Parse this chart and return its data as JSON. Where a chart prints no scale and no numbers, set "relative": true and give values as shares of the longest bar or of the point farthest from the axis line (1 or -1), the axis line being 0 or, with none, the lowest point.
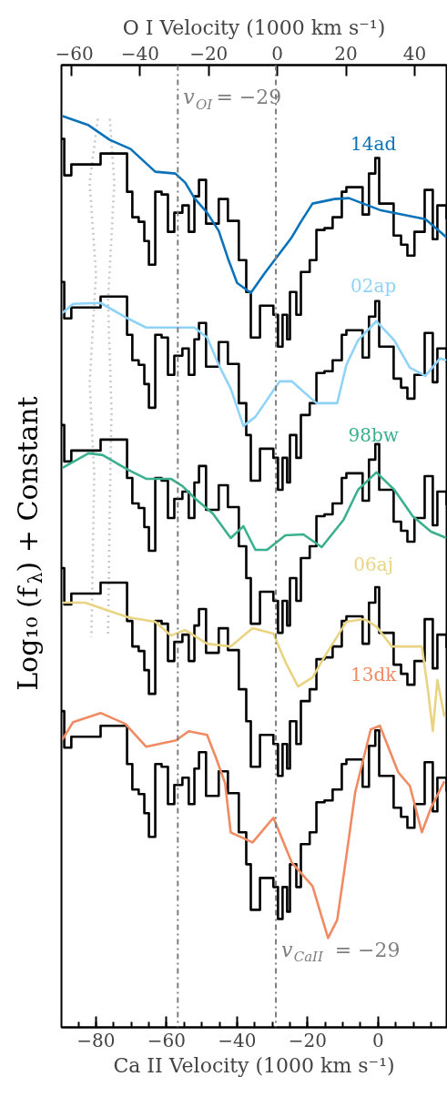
{
  "chart_data": {
    "type": "step",
    "relative": true,
    "tick_labels": "x",
    "xlabel": "Ca II Velocity (1000 km s⁻¹)",
    "x2label": "O I Velocity (1000 km s⁻¹)",
    "ylabel": "Log₁₀ (f$_{λ}$) + Constant",
    "xlim": [
      -89.8,
      19.4
    ],
    "xticks": [
      -80,
      -60,
      -40,
      -20,
      0
    ],
    "x2lim": [
      -62.9,
      49.3
    ],
    "x2ticks": [
      -60,
      -40,
      -20,
      0,
      20,
      40
    ],
    "x": [
      -89.8,
      -89.0,
      -87.0,
      -78.7,
      -71.2,
      -69.7,
      -67.9,
      -66.3,
      -65.0,
      -63.2,
      -61.4,
      -59.6,
      -57.8,
      -55.5,
      -53.7,
      -52.1,
      -50.8,
      -48.8,
      -45.2,
      -42.6,
      -39.5,
      -37.4,
      -36.1,
      -33.5,
      -29.7,
      -28.4,
      -27.1,
      -25.8,
      -25.0,
      -23.2,
      -21.9,
      -19.4,
      -17.5,
      -15.2,
      -12.9,
      -10.3,
      -9.0,
      -4.4,
      -2.6,
      -0.8,
      0.3,
      4.4,
      6.5,
      8.3,
      10.3,
      13.2,
      15.5,
      16.8,
      19.4
    ],
    "series": [
      {
        "type": "line",
        "color": "#c8c8c8",
        "line_style": "dotted",
        "x": [
          -79.5,
          -81.8,
          -80.0,
          -81.8,
          -80.5,
          -81.3
        ],
        "values": [
          0.997,
          0.927,
          0.827,
          0.707,
          0.608,
          0.428
        ]
      },
      {
        "type": "line",
        "color": "#c8c8c8",
        "line_style": "dotted",
        "x": [
          -76.1,
          -74.8,
          -76.6,
          -75.6,
          -76.1,
          -76.6
        ],
        "values": [
          0.997,
          0.927,
          0.797,
          0.677,
          0.568,
          0.428
        ]
      },
      {
        "color": "#000000",
        "values": [
          0.975,
          0.935,
          0.947,
          0.959,
          0.917,
          0.889,
          0.884,
          0.863,
          0.837,
          0.917,
          0.914,
          0.873,
          0.894,
          0.902,
          0.873,
          0.912,
          0.93,
          0.882,
          0.909,
          0.885,
          0.842,
          0.807,
          0.757,
          0.792,
          0.782,
          0.747,
          0.782,
          0.755,
          0.807,
          0.782,
          0.829,
          0.842,
          0.875,
          0.877,
          0.889,
          0.917,
          0.922,
          0.892,
          0.937,
          0.954,
          0.904,
          0.869,
          0.859,
          0.847,
          0.873,
          0.919,
          0.865,
          0.902,
          0.887
        ]
      },
      {
        "color": "#000000",
        "values": [
          0.818,
          0.778,
          0.79,
          0.802,
          0.76,
          0.732,
          0.727,
          0.706,
          0.68,
          0.76,
          0.757,
          0.716,
          0.737,
          0.745,
          0.716,
          0.755,
          0.773,
          0.725,
          0.752,
          0.728,
          0.685,
          0.65,
          0.6,
          0.635,
          0.625,
          0.59,
          0.625,
          0.598,
          0.65,
          0.625,
          0.672,
          0.685,
          0.718,
          0.72,
          0.732,
          0.76,
          0.765,
          0.735,
          0.78,
          0.797,
          0.747,
          0.712,
          0.702,
          0.69,
          0.716,
          0.762,
          0.708,
          0.745,
          0.73
        ]
      },
      {
        "color": "#000000",
        "values": [
          0.661,
          0.621,
          0.633,
          0.645,
          0.603,
          0.575,
          0.57,
          0.549,
          0.523,
          0.603,
          0.6,
          0.559,
          0.58,
          0.588,
          0.559,
          0.598,
          0.616,
          0.568,
          0.595,
          0.571,
          0.528,
          0.493,
          0.443,
          0.478,
          0.468,
          0.433,
          0.468,
          0.441,
          0.493,
          0.468,
          0.515,
          0.528,
          0.561,
          0.563,
          0.575,
          0.603,
          0.608,
          0.578,
          0.623,
          0.64,
          0.59,
          0.555,
          0.545,
          0.533,
          0.559,
          0.605,
          0.551,
          0.588,
          0.573
        ]
      },
      {
        "color": "#000000",
        "values": [
          0.504,
          0.464,
          0.476,
          0.488,
          0.446,
          0.418,
          0.413,
          0.392,
          0.366,
          0.446,
          0.443,
          0.402,
          0.423,
          0.431,
          0.402,
          0.441,
          0.459,
          0.411,
          0.438,
          0.414,
          0.371,
          0.336,
          0.286,
          0.321,
          0.311,
          0.276,
          0.311,
          0.284,
          0.336,
          0.311,
          0.358,
          0.371,
          0.404,
          0.406,
          0.418,
          0.446,
          0.451,
          0.421,
          0.466,
          0.483,
          0.433,
          0.398,
          0.388,
          0.376,
          0.402,
          0.448,
          0.394,
          0.431,
          0.416
        ]
      },
      {
        "color": "#000000",
        "values": [
          0.347,
          0.307,
          0.319,
          0.331,
          0.289,
          0.261,
          0.256,
          0.235,
          0.209,
          0.289,
          0.286,
          0.245,
          0.266,
          0.274,
          0.245,
          0.284,
          0.302,
          0.254,
          0.281,
          0.257,
          0.214,
          0.179,
          0.129,
          0.164,
          0.154,
          0.119,
          0.154,
          0.127,
          0.179,
          0.154,
          0.201,
          0.214,
          0.247,
          0.249,
          0.261,
          0.289,
          0.294,
          0.264,
          0.309,
          0.326,
          0.276,
          0.241,
          0.231,
          0.219,
          0.245,
          0.291,
          0.237,
          0.274,
          0.259
        ]
      },
      {
        "name": "14ad",
        "type": "line",
        "color": "#0a72b8",
        "x": [
          -89.5,
          -82.1,
          -76.1,
          -70.2,
          -63.2,
          -57.5,
          -54.7,
          -52.1,
          -48.5,
          -45.2,
          -42.6,
          -40.0,
          -36.1,
          -32.3,
          -28.4,
          -24.5,
          -21.9,
          -18.6,
          -12.4,
          -8.3,
          0.5,
          13.4,
          19.4
        ],
        "values": [
          1.0,
          0.99,
          0.974,
          0.964,
          0.939,
          0.937,
          0.927,
          0.91,
          0.894,
          0.874,
          0.844,
          0.817,
          0.806,
          0.827,
          0.847,
          0.867,
          0.884,
          0.904,
          0.909,
          0.91,
          0.897,
          0.887,
          0.867
        ]
      },
      {
        "name": "02ap",
        "type": "line",
        "color": "#8fd3f7",
        "x": [
          -89.5,
          -86.5,
          -78.7,
          -71.0,
          -65.8,
          -57.3,
          -52.1,
          -48.5,
          -45.2,
          -41.8,
          -38.2,
          -34.8,
          -27.9,
          -24.5,
          -17.5,
          -11.6,
          -9.0,
          -5.7,
          -0.5,
          4.6,
          9.0,
          13.4,
          17.5,
          19.4
        ],
        "values": [
          0.784,
          0.794,
          0.795,
          0.778,
          0.768,
          0.768,
          0.768,
          0.757,
          0.727,
          0.701,
          0.66,
          0.67,
          0.709,
          0.709,
          0.685,
          0.685,
          0.727,
          0.754,
          0.775,
          0.754,
          0.724,
          0.715,
          0.734,
          0.732
        ]
      },
      {
        "name": "98bw",
        "type": "line",
        "color": "#3bb08f",
        "x": [
          -89.5,
          -82.1,
          -78.1,
          -71.0,
          -65.8,
          -58.8,
          -55.5,
          -52.1,
          -46.9,
          -41.8,
          -38.2,
          -34.8,
          -31.5,
          -26.3,
          -21.2,
          -16.0,
          -9.8,
          -5.7,
          -0.5,
          4.6,
          9.8,
          15.0,
          19.4
        ],
        "values": [
          0.614,
          0.63,
          0.628,
          0.612,
          0.602,
          0.602,
          0.594,
          0.581,
          0.564,
          0.537,
          0.55,
          0.524,
          0.524,
          0.54,
          0.541,
          0.527,
          0.557,
          0.59,
          0.609,
          0.59,
          0.561,
          0.544,
          0.537
        ]
      },
      {
        "name": "06aj",
        "type": "line",
        "color": "#e8d482",
        "x": [
          -89.5,
          -83.1,
          -71.0,
          -63.2,
          -58.8,
          -54.7,
          -48.5,
          -41.8,
          -35.6,
          -29.7,
          -26.3,
          -22.7,
          -18.6,
          -15.0,
          -9.0,
          -3.9,
          -0.5,
          3.9,
          12.4,
          14.2,
          15.5,
          16.8,
          18.8
        ],
        "values": [
          0.466,
          0.466,
          0.45,
          0.445,
          0.43,
          0.436,
          0.421,
          0.418,
          0.438,
          0.432,
          0.401,
          0.374,
          0.384,
          0.408,
          0.445,
          0.448,
          0.44,
          0.418,
          0.418,
          0.368,
          0.325,
          0.381,
          0.341
        ]
      },
      {
        "name": "13dk",
        "type": "line",
        "color": "#f08a62",
        "x": [
          -89.5,
          -86.5,
          -78.7,
          -71.7,
          -65.8,
          -57.3,
          -53.7,
          -48.5,
          -45.9,
          -43.4,
          -41.8,
          -35.6,
          -29.7,
          -24.5,
          -18.6,
          -14.2,
          -11.6,
          -9.0,
          -6.5,
          -2.1,
          0.5,
          5.7,
          9.0,
          12.4,
          15.0,
          18.8
        ],
        "values": [
          0.316,
          0.335,
          0.345,
          0.333,
          0.308,
          0.315,
          0.325,
          0.321,
          0.295,
          0.268,
          0.214,
          0.203,
          0.23,
          0.181,
          0.155,
          0.098,
          0.118,
          0.188,
          0.258,
          0.327,
          0.331,
          0.28,
          0.265,
          0.214,
          0.241,
          0.27
        ]
      }
    ],
    "ref_lines": [
      {
        "axis": "x2",
        "value": -29,
        "label": "v$_{OI}$ = −29",
        "color": "#7f7f7f",
        "line_style": "dashdot"
      },
      {
        "axis": "x",
        "value": -29,
        "label": "v$_{CaII}$ = −29",
        "color": "#7f7f7f",
        "line_style": "dashdot"
      }
    ]
  }
}
